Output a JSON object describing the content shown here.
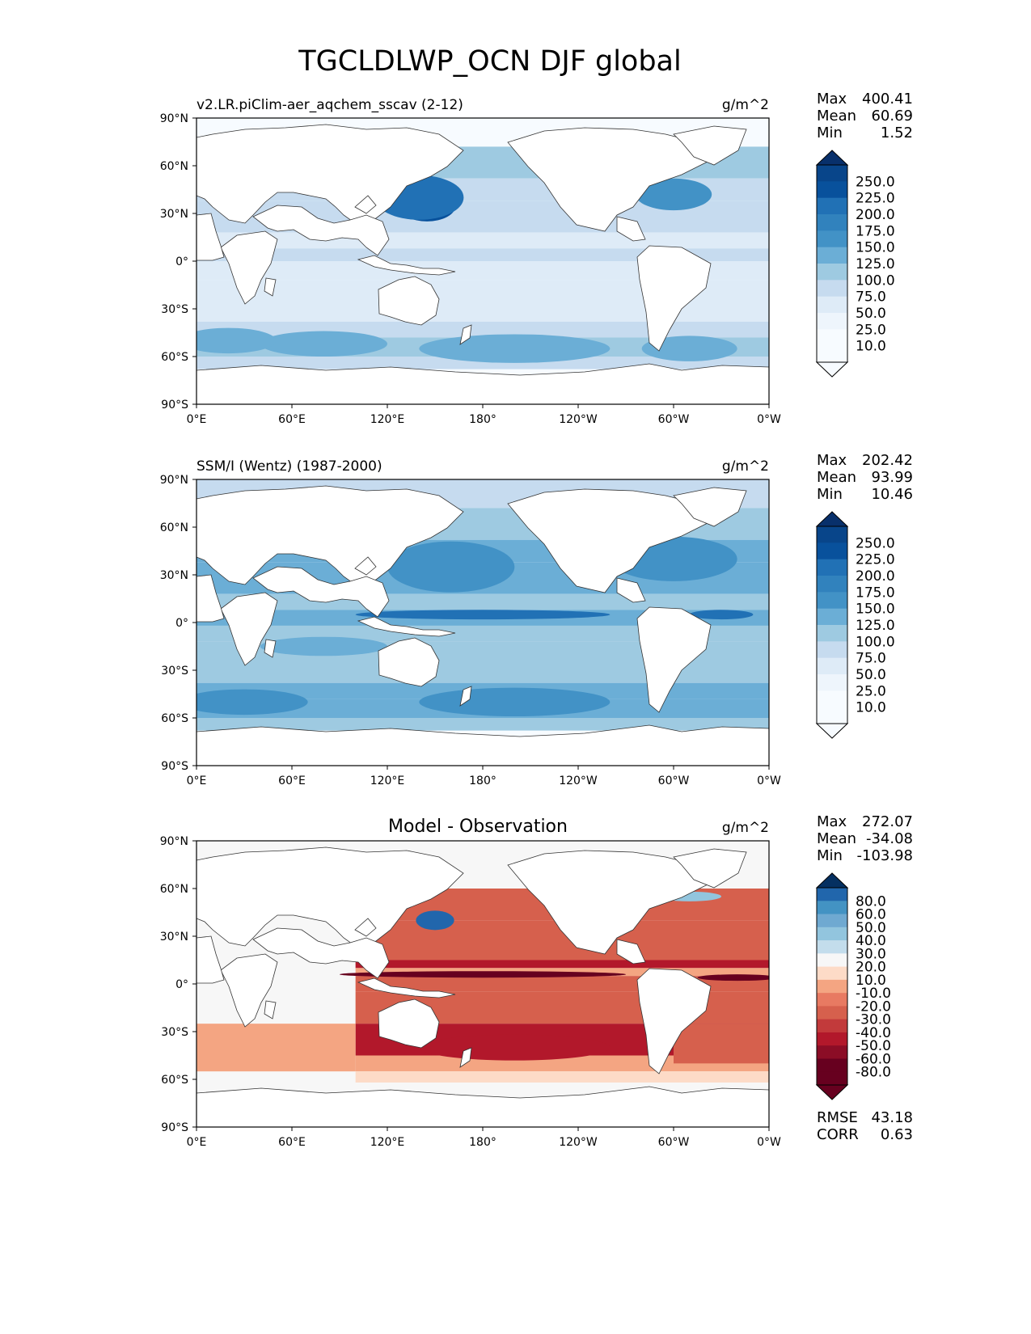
{
  "page_title": "TGCLDLWP_OCN DJF global",
  "colors": {
    "ocean_blues": [
      "#f7fbff",
      "#deebf7",
      "#c6dbef",
      "#9ecae1",
      "#6baed6",
      "#4292c6",
      "#2171b5",
      "#08519c",
      "#08306b"
    ],
    "diff_reds": [
      "#fddbc7",
      "#f4a582",
      "#d6604d",
      "#b2182b",
      "#67001f"
    ],
    "land": "#ffffff",
    "coast": "#333333"
  },
  "chart_data": [
    {
      "type": "map",
      "title_left": "v2.LR.piClim-aer_aqchem_sscav (2-12)",
      "title_center": "",
      "units": "g/m^2",
      "xlabel_ticks": [
        "0°E",
        "60°E",
        "120°E",
        "180°",
        "120°W",
        "60°W",
        "0°W"
      ],
      "ylabel_ticks": [
        "90°N",
        "60°N",
        "30°N",
        "0°",
        "30°S",
        "60°S",
        "90°S"
      ],
      "xlim": [
        0,
        360
      ],
      "ylim": [
        -90,
        90
      ],
      "stats_labels": [
        "Max",
        "Mean",
        "Min"
      ],
      "stats_values": [
        "400.41",
        "60.69",
        "1.52"
      ],
      "colorbar_levels": [
        "250.0",
        "225.0",
        "200.0",
        "175.0",
        "150.0",
        "125.0",
        "100.0",
        "75.0",
        "50.0",
        "25.0",
        "10.0"
      ],
      "colorbar_extend": "both",
      "colormap": "Blues"
    },
    {
      "type": "map",
      "title_left": "SSM/I (Wentz) (1987-2000)",
      "title_center": "",
      "units": "g/m^2",
      "xlabel_ticks": [
        "0°E",
        "60°E",
        "120°E",
        "180°",
        "120°W",
        "60°W",
        "0°W"
      ],
      "ylabel_ticks": [
        "90°N",
        "60°N",
        "30°N",
        "0°",
        "30°S",
        "60°S",
        "90°S"
      ],
      "xlim": [
        0,
        360
      ],
      "ylim": [
        -90,
        90
      ],
      "stats_labels": [
        "Max",
        "Mean",
        "Min"
      ],
      "stats_values": [
        "202.42",
        "93.99",
        "10.46"
      ],
      "colorbar_levels": [
        "250.0",
        "225.0",
        "200.0",
        "175.0",
        "150.0",
        "125.0",
        "100.0",
        "75.0",
        "50.0",
        "25.0",
        "10.0"
      ],
      "colorbar_extend": "both",
      "colormap": "Blues"
    },
    {
      "type": "map",
      "title_left": "",
      "title_center": "Model - Observation",
      "units": "g/m^2",
      "xlabel_ticks": [
        "0°E",
        "60°E",
        "120°E",
        "180°",
        "120°W",
        "60°W",
        "0°W"
      ],
      "ylabel_ticks": [
        "90°N",
        "60°N",
        "30°N",
        "0°",
        "30°S",
        "60°S",
        "90°S"
      ],
      "xlim": [
        0,
        360
      ],
      "ylim": [
        -90,
        90
      ],
      "stats_labels": [
        "Max",
        "Mean",
        "Min"
      ],
      "stats_values": [
        "272.07",
        "-34.08",
        "-103.98"
      ],
      "colorbar_levels": [
        "80.0",
        "60.0",
        "50.0",
        "40.0",
        "30.0",
        "20.0",
        "10.0",
        "-10.0",
        "-20.0",
        "-30.0",
        "-40.0",
        "-50.0",
        "-60.0",
        "-80.0"
      ],
      "colorbar_extend": "both",
      "colormap": "RdBu",
      "extra_labels": [
        "RMSE",
        "CORR"
      ],
      "extra_values": [
        "43.18",
        "0.63"
      ]
    }
  ]
}
